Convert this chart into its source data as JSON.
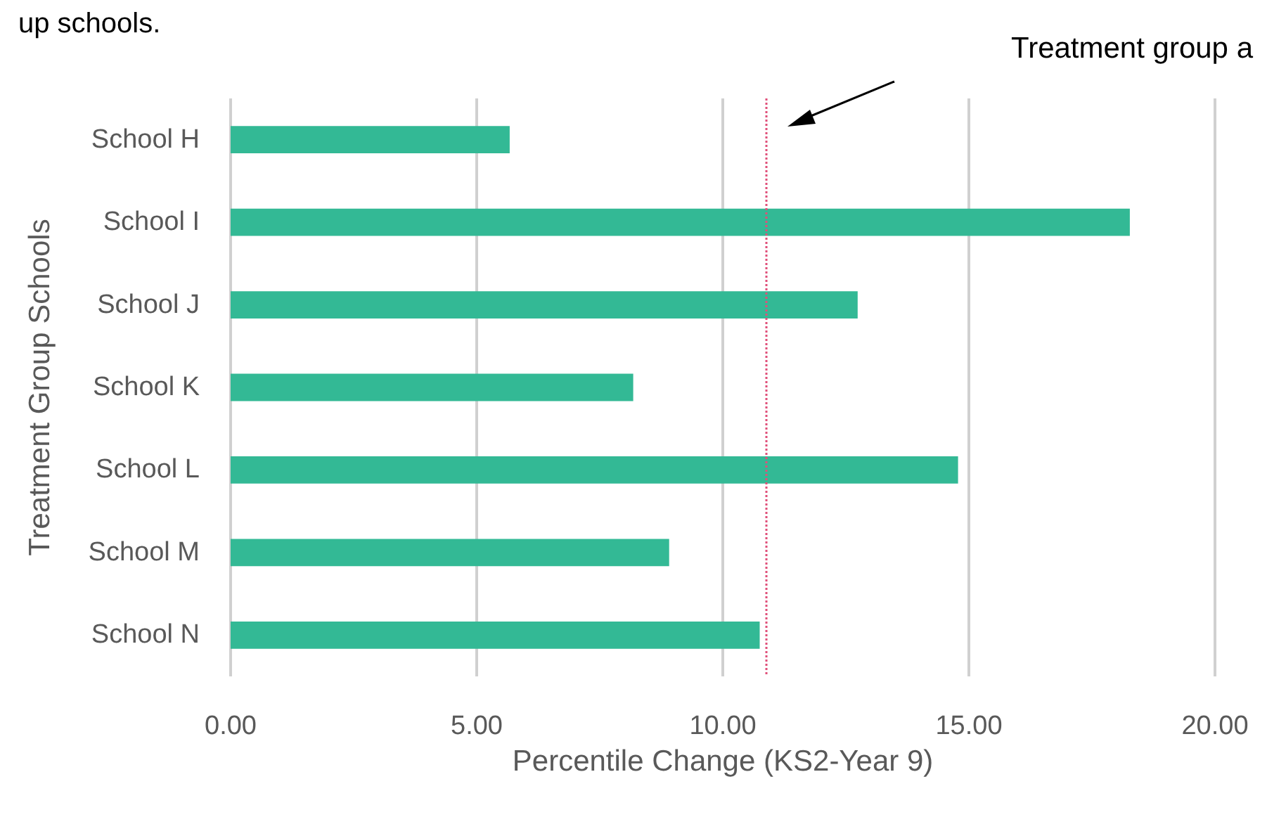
{
  "chart_data": {
    "type": "bar",
    "orientation": "horizontal",
    "title": "up schools.",
    "ylabel": "Treatment Group Schools",
    "xlabel": "Percentile Change (KS2-Year 9)",
    "categories": [
      "School H",
      "School I",
      "School J",
      "School K",
      "School L",
      "School M",
      "School N"
    ],
    "values": [
      5.67,
      18.27,
      12.74,
      8.18,
      14.78,
      8.91,
      10.75
    ],
    "color": "#33b995",
    "xlim": [
      0,
      20
    ],
    "xticks": [
      {
        "value": 0,
        "label": "0.00"
      },
      {
        "value": 5,
        "label": "5.00"
      },
      {
        "value": 10,
        "label": "10.00"
      },
      {
        "value": 15,
        "label": "15.00"
      },
      {
        "value": 20,
        "label": "20.00"
      }
    ],
    "grid": "x",
    "ref_lines": [
      {
        "axis": "x",
        "value": 10.87,
        "label": null,
        "color": "#e0507a",
        "line_style": "dotted"
      }
    ],
    "annotations": [
      "Treatment group a"
    ]
  }
}
